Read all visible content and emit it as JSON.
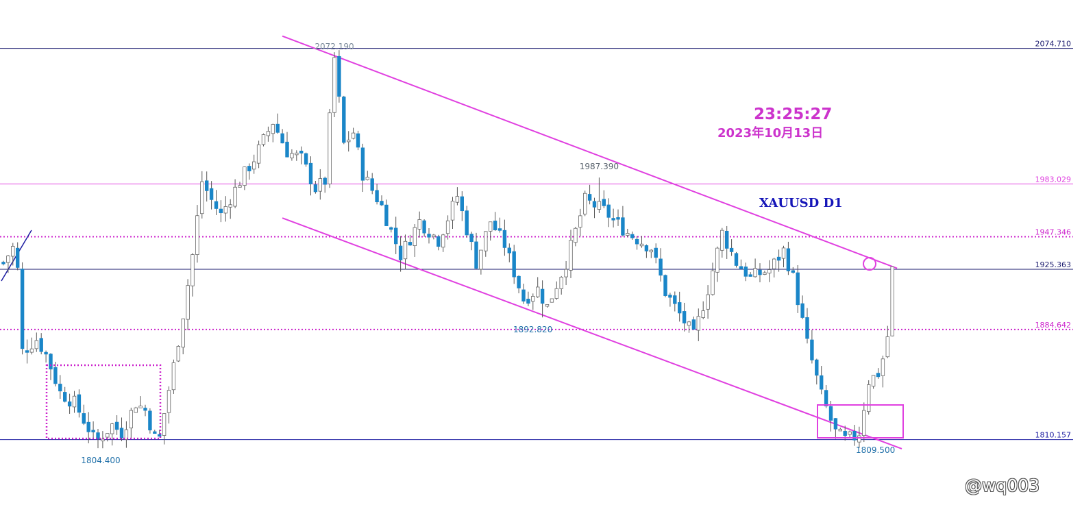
{
  "chart_data": {
    "type": "candlestick",
    "symbol_label": "XAUUSD D1",
    "time_label": "23:25:27",
    "date_label": "2023年10月13日",
    "watermark": "@wq003",
    "levels": [
      {
        "value": 2074.71,
        "label": "2074.710",
        "color": "#1a1a6e",
        "style": "solid"
      },
      {
        "value": 1983.029,
        "label": "1983.029",
        "color": "#e040e0",
        "style": "solid"
      },
      {
        "value": 1947.346,
        "label": "1947.346",
        "color": "#cc22cc",
        "style": "dotted"
      },
      {
        "value": 1925.363,
        "label": "1925.363",
        "color": "#1a1a6e",
        "style": "solid"
      },
      {
        "value": 1884.642,
        "label": "1884.642",
        "color": "#cc22cc",
        "style": "dotted"
      },
      {
        "value": 1810.157,
        "label": "1810.157",
        "color": "#1a1aa0",
        "style": "solid"
      }
    ],
    "annotations": [
      {
        "label": "2072.190",
        "value": 2072.19,
        "bar": 70
      },
      {
        "label": "1987.390",
        "value": 1987.39,
        "bar": 126
      },
      {
        "label": "1892.820",
        "value": 1892.82,
        "bar": 114
      },
      {
        "label": "1804.400",
        "value": 1804.4,
        "bar": 20
      },
      {
        "label": "1809.500",
        "value": 1809.5,
        "bar": 184
      }
    ],
    "channel": {
      "upper": [
        {
          "bar": 59,
          "value": 2083
        },
        {
          "bar": 189,
          "value": 1926
        }
      ],
      "lower": [
        {
          "bar": 59,
          "value": 1960
        },
        {
          "bar": 190,
          "value": 1804
        }
      ]
    },
    "ylim": [
      1794,
      2094
    ],
    "num_bars": 192,
    "colors": {
      "bull": "#ffffff",
      "bear": "#1a86c8",
      "wick": "#555555",
      "accent": "#e040e0"
    }
  }
}
